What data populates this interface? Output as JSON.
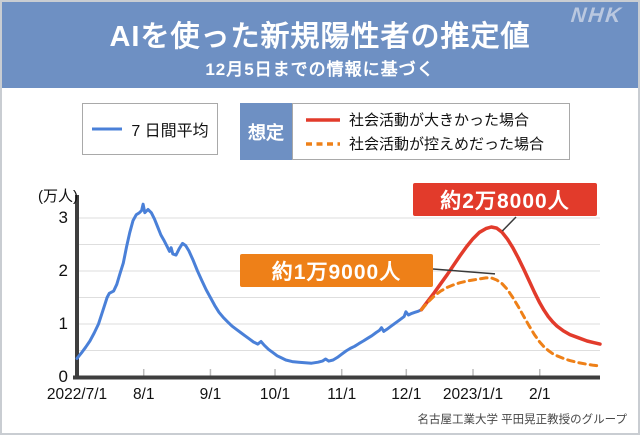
{
  "header": {
    "title": "AIを使った新規陽性者の推定値",
    "subtitle": "12月5日までの情報に基づく",
    "logo": "NHK",
    "bg_color": "#6e90c3"
  },
  "legend": {
    "avg_label": "7 日間平均",
    "scenario_label": "想定",
    "scenario_entries": [
      {
        "label": "社会活動が大きかった場合",
        "color": "#e23b2b",
        "style": "solid"
      },
      {
        "label": "社会活動が控えめだった場合",
        "color": "#ee8018",
        "style": "dashed"
      }
    ]
  },
  "annotations": {
    "red": {
      "text": "約2万8000人",
      "bg": "#e23b2b",
      "points_to": {
        "day": 192.5,
        "value": 2.83
      }
    },
    "orange": {
      "text": "約1万9000人",
      "bg": "#ee8018",
      "points_to": {
        "day": 190.5,
        "value": 1.87
      }
    }
  },
  "credit": "名古屋工業大学 平田晃正教授のグループ",
  "chart_data": {
    "type": "line",
    "title": "AIを使った新規陽性者の推定値",
    "ylabel": "(万人)",
    "xlabel": "",
    "x_unit": "days since 2022-07-01",
    "ylim": [
      0,
      3.45
    ],
    "grid_step": 0.5,
    "grid_color": "#dedede",
    "axis_color": "#3e3e3e",
    "yticks": [
      0,
      1,
      2,
      3
    ],
    "xticks": {
      "days": [
        0,
        31,
        62,
        92,
        123,
        153,
        184,
        215
      ],
      "labels": [
        "2022/7/1",
        "8/1",
        "9/1",
        "10/1",
        "11/1",
        "12/1",
        "2023/1/1",
        "2/1"
      ]
    },
    "series": [
      {
        "name": "7日間平均",
        "color": "#4a80d8",
        "style": "solid",
        "width": 3,
        "points": [
          [
            0,
            0.35
          ],
          [
            2,
            0.45
          ],
          [
            4,
            0.56
          ],
          [
            6,
            0.68
          ],
          [
            8,
            0.83
          ],
          [
            10,
            1.0
          ],
          [
            12,
            1.25
          ],
          [
            14,
            1.5
          ],
          [
            15,
            1.58
          ],
          [
            17,
            1.62
          ],
          [
            18.5,
            1.75
          ],
          [
            20,
            1.95
          ],
          [
            21.5,
            2.15
          ],
          [
            23,
            2.45
          ],
          [
            24.5,
            2.72
          ],
          [
            26,
            2.95
          ],
          [
            27.5,
            3.06
          ],
          [
            29,
            3.1
          ],
          [
            30,
            3.14
          ],
          [
            30.7,
            3.26
          ],
          [
            31.5,
            3.1
          ],
          [
            33,
            3.16
          ],
          [
            34.5,
            3.1
          ],
          [
            36,
            2.98
          ],
          [
            37.5,
            2.83
          ],
          [
            39,
            2.68
          ],
          [
            40.5,
            2.57
          ],
          [
            42,
            2.45
          ],
          [
            43,
            2.37
          ],
          [
            43.7,
            2.44
          ],
          [
            44.5,
            2.32
          ],
          [
            46,
            2.3
          ],
          [
            47.5,
            2.42
          ],
          [
            49,
            2.52
          ],
          [
            50.5,
            2.48
          ],
          [
            52,
            2.38
          ],
          [
            54,
            2.2
          ],
          [
            56,
            2.0
          ],
          [
            58,
            1.82
          ],
          [
            60,
            1.65
          ],
          [
            62,
            1.5
          ],
          [
            64,
            1.35
          ],
          [
            66,
            1.22
          ],
          [
            68,
            1.12
          ],
          [
            70,
            1.04
          ],
          [
            72,
            0.96
          ],
          [
            74,
            0.9
          ],
          [
            76,
            0.84
          ],
          [
            78,
            0.78
          ],
          [
            80,
            0.72
          ],
          [
            82,
            0.66
          ],
          [
            84,
            0.62
          ],
          [
            85.5,
            0.67
          ],
          [
            87,
            0.6
          ],
          [
            89,
            0.52
          ],
          [
            91,
            0.46
          ],
          [
            93,
            0.4
          ],
          [
            95,
            0.36
          ],
          [
            97,
            0.32
          ],
          [
            100,
            0.29
          ],
          [
            103,
            0.28
          ],
          [
            106,
            0.27
          ],
          [
            109,
            0.26
          ],
          [
            112,
            0.28
          ],
          [
            114,
            0.3
          ],
          [
            115.5,
            0.34
          ],
          [
            117,
            0.3
          ],
          [
            119,
            0.32
          ],
          [
            121,
            0.37
          ],
          [
            123,
            0.43
          ],
          [
            125,
            0.49
          ],
          [
            127,
            0.54
          ],
          [
            129,
            0.58
          ],
          [
            131,
            0.63
          ],
          [
            133,
            0.68
          ],
          [
            135,
            0.73
          ],
          [
            137,
            0.78
          ],
          [
            139,
            0.84
          ],
          [
            140.5,
            0.88
          ],
          [
            141.5,
            0.93
          ],
          [
            142.5,
            0.86
          ],
          [
            144,
            0.9
          ],
          [
            146,
            0.96
          ],
          [
            148,
            1.02
          ],
          [
            150,
            1.08
          ],
          [
            152,
            1.14
          ],
          [
            152.8,
            1.23
          ],
          [
            154,
            1.17
          ],
          [
            155.5,
            1.2
          ],
          [
            157,
            1.22
          ],
          [
            158.5,
            1.24
          ],
          [
            160,
            1.27
          ]
        ]
      },
      {
        "name": "想定 社会活動が大きかった場合",
        "color": "#e23b2b",
        "style": "solid",
        "width": 3.5,
        "points": [
          [
            160,
            1.27
          ],
          [
            163,
            1.43
          ],
          [
            166,
            1.59
          ],
          [
            169,
            1.76
          ],
          [
            172,
            1.93
          ],
          [
            175,
            2.11
          ],
          [
            178,
            2.29
          ],
          [
            181,
            2.46
          ],
          [
            184,
            2.61
          ],
          [
            187,
            2.73
          ],
          [
            190,
            2.8
          ],
          [
            192.5,
            2.83
          ],
          [
            195,
            2.81
          ],
          [
            197.5,
            2.73
          ],
          [
            200,
            2.6
          ],
          [
            202.5,
            2.44
          ],
          [
            205,
            2.25
          ],
          [
            207.5,
            2.04
          ],
          [
            210,
            1.82
          ],
          [
            212.5,
            1.6
          ],
          [
            215,
            1.4
          ],
          [
            217,
            1.26
          ],
          [
            219,
            1.14
          ],
          [
            221,
            1.04
          ],
          [
            223,
            0.96
          ],
          [
            226,
            0.87
          ],
          [
            229,
            0.8
          ],
          [
            233,
            0.74
          ],
          [
            237,
            0.68
          ],
          [
            240,
            0.65
          ],
          [
            243,
            0.62
          ]
        ]
      },
      {
        "name": "想定 社会活動が控えめだった場合",
        "color": "#ee8018",
        "style": "dashed",
        "width": 3,
        "points": [
          [
            160,
            1.27
          ],
          [
            163,
            1.41
          ],
          [
            166,
            1.53
          ],
          [
            169,
            1.62
          ],
          [
            172,
            1.69
          ],
          [
            175,
            1.74
          ],
          [
            178,
            1.78
          ],
          [
            181,
            1.81
          ],
          [
            184,
            1.83
          ],
          [
            187,
            1.85
          ],
          [
            190,
            1.87
          ],
          [
            192.5,
            1.87
          ],
          [
            195,
            1.83
          ],
          [
            197.5,
            1.76
          ],
          [
            200,
            1.65
          ],
          [
            202.5,
            1.5
          ],
          [
            205,
            1.33
          ],
          [
            207.5,
            1.15
          ],
          [
            210,
            0.97
          ],
          [
            212.5,
            0.8
          ],
          [
            215,
            0.66
          ],
          [
            217,
            0.57
          ],
          [
            219,
            0.5
          ],
          [
            221,
            0.44
          ],
          [
            223,
            0.4
          ],
          [
            226,
            0.35
          ],
          [
            229,
            0.31
          ],
          [
            233,
            0.27
          ],
          [
            237,
            0.24
          ],
          [
            240,
            0.22
          ],
          [
            243,
            0.21
          ]
        ]
      }
    ]
  }
}
